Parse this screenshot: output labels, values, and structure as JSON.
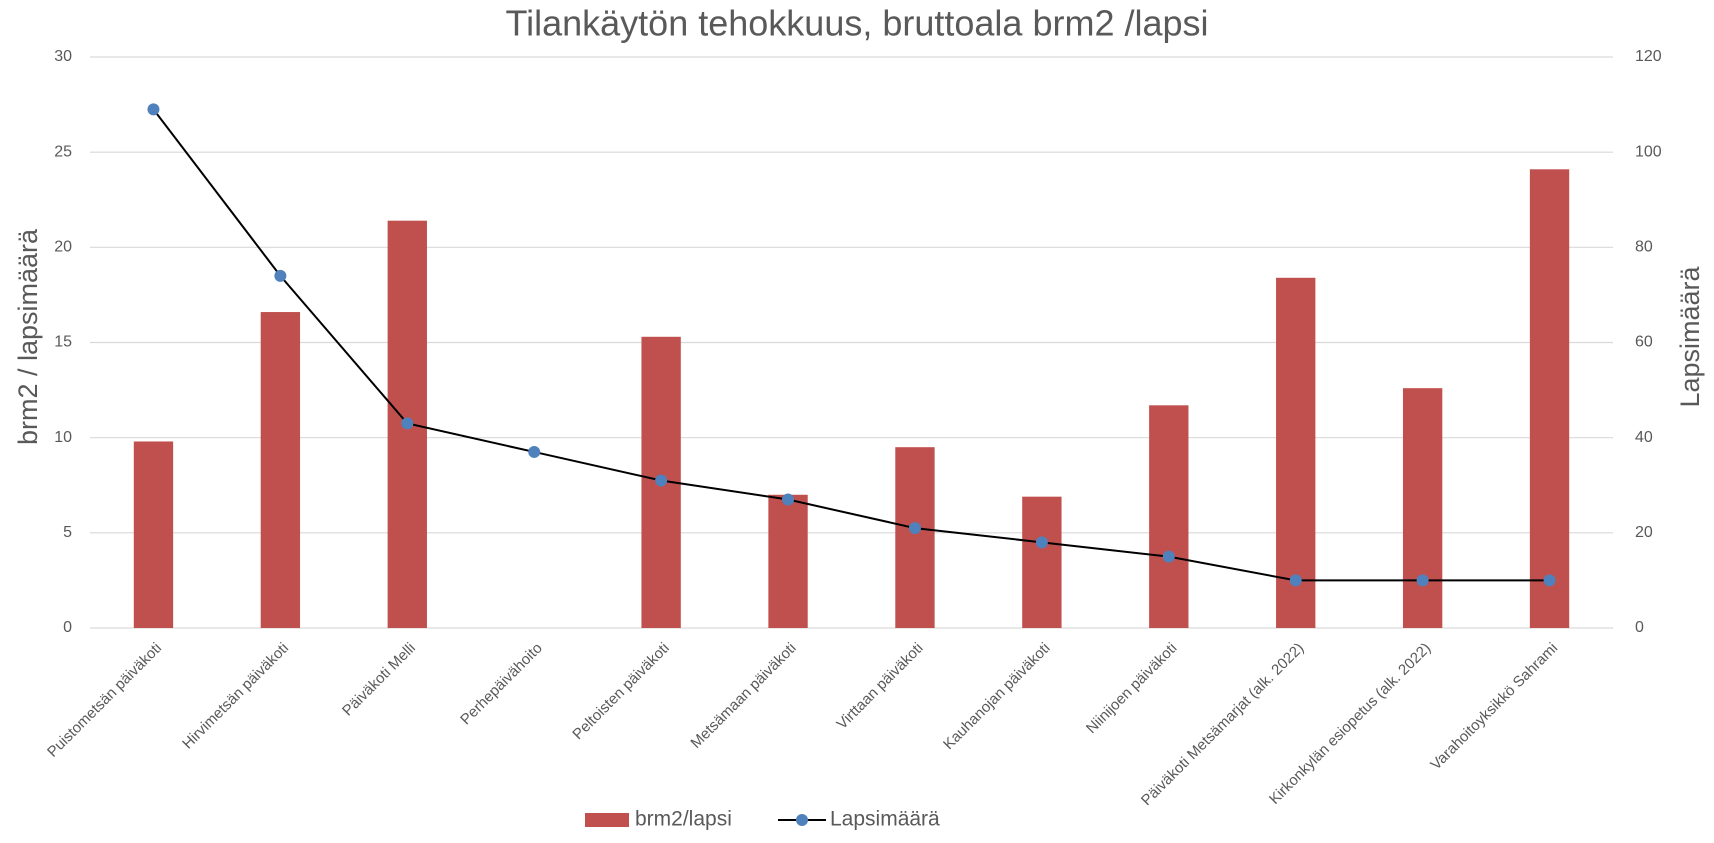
{
  "chart_data": {
    "type": "bar_line",
    "title": "Tilankäytön tehokkuus, bruttoala brm2 /lapsi",
    "y_label": "brm2 / lapsimäärä",
    "y2_label": "Lapsimäärä",
    "categories": [
      "Puistometsän päiväkoti",
      "Hirvimetsän päiväkoti",
      "Päiväkoti Melli",
      "Perhepäivähoito",
      "Peltoisten päiväkoti",
      "Metsämaan päiväkoti",
      "Virttaan päiväkoti",
      "Kauhanojan päiväkoti",
      "Niinijoen päiväkoti",
      "Päiväkoti Metsämarjat (alk. 2022)",
      "Kirkonkylän esiopetus (alk. 2022)",
      "Varahoitoyksikkö Sahrami"
    ],
    "series": [
      {
        "name": "brm2/lapsi",
        "type": "bar",
        "color": "#c0504d",
        "values": [
          9.8,
          16.6,
          21.4,
          null,
          15.3,
          7.0,
          9.5,
          6.9,
          11.7,
          18.4,
          12.6,
          24.1
        ]
      },
      {
        "name": "Lapsimäärä",
        "type": "line",
        "axis": "y2",
        "color": "#000000",
        "marker_color": "#4f81bd",
        "values": [
          109,
          74,
          43,
          37,
          31,
          27,
          21,
          18,
          15,
          10,
          10,
          10
        ]
      }
    ],
    "ylim": [
      0,
      30
    ],
    "yticks": [
      0,
      5,
      10,
      15,
      20,
      25,
      30
    ],
    "y2lim": [
      0,
      120
    ],
    "y2ticks": [
      0,
      20,
      40,
      60,
      80,
      100,
      120
    ],
    "grid": true,
    "legend": "bottom"
  }
}
